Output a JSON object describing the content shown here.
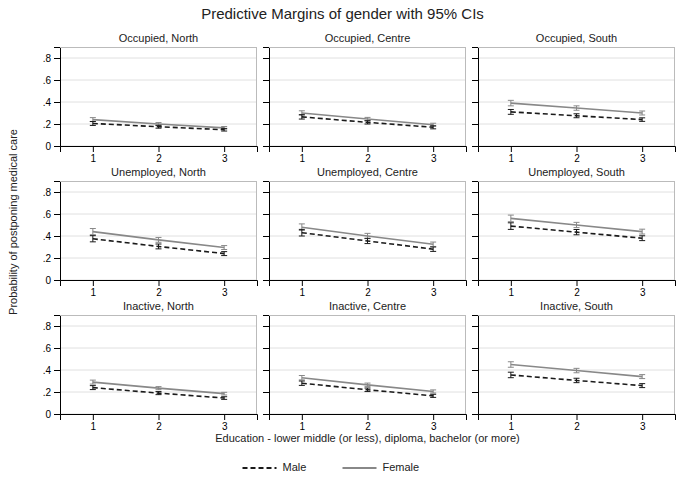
{
  "title": "Predictive Margins of gender with 95% CIs",
  "ylabel": "Probability of postponing medical care",
  "xlabel": "Education - lower middle (or less), diploma, bachelor (or more)",
  "legend": "bottom",
  "chart_data": [
    {
      "type": "line",
      "title": "Occupied, North",
      "x": [
        1,
        2,
        3
      ],
      "xlim": [
        0.5,
        3.5
      ],
      "xticks": [
        1,
        2,
        3
      ],
      "ylim": [
        0,
        0.9
      ],
      "yticks": [
        0,
        {
          "value": 0.2,
          "label": ".2"
        },
        {
          "value": 0.4,
          "label": ".4"
        },
        {
          "value": 0.6,
          "label": ".6"
        },
        {
          "value": 0.8,
          "label": ".8"
        }
      ],
      "grid": true,
      "series": [
        {
          "name": "Male",
          "color": "#1a1a1a",
          "line_style": "dashed",
          "values": [
            0.205,
            0.175,
            0.148
          ],
          "errors": [
            0.018,
            0.013,
            0.012
          ]
        },
        {
          "name": "Female",
          "color": "#888888",
          "line_style": "solid",
          "values": [
            0.24,
            0.2,
            0.165
          ],
          "errors": [
            0.018,
            0.013,
            0.012
          ]
        }
      ]
    },
    {
      "type": "line",
      "title": "Occupied, Centre",
      "x": [
        1,
        2,
        3
      ],
      "xlim": [
        0.5,
        3.5
      ],
      "xticks": [
        1,
        2,
        3
      ],
      "ylim": [
        0,
        0.9
      ],
      "yticks": [
        0,
        {
          "value": 0.2,
          "label": ".2"
        },
        {
          "value": 0.4,
          "label": ".4"
        },
        {
          "value": 0.6,
          "label": ".6"
        },
        {
          "value": 0.8,
          "label": ".8"
        }
      ],
      "grid": true,
      "tick_labels": "x",
      "series": [
        {
          "name": "Male",
          "color": "#1a1a1a",
          "line_style": "dashed",
          "values": [
            0.265,
            0.215,
            0.17
          ],
          "errors": [
            0.02,
            0.015,
            0.014
          ]
        },
        {
          "name": "Female",
          "color": "#888888",
          "line_style": "solid",
          "values": [
            0.3,
            0.245,
            0.193
          ],
          "errors": [
            0.02,
            0.015,
            0.014
          ]
        }
      ]
    },
    {
      "type": "line",
      "title": "Occupied, South",
      "x": [
        1,
        2,
        3
      ],
      "xlim": [
        0.5,
        3.5
      ],
      "xticks": [
        1,
        2,
        3
      ],
      "ylim": [
        0,
        0.9
      ],
      "yticks": [
        0,
        {
          "value": 0.2,
          "label": ".2"
        },
        {
          "value": 0.4,
          "label": ".4"
        },
        {
          "value": 0.6,
          "label": ".6"
        },
        {
          "value": 0.8,
          "label": ".8"
        }
      ],
      "grid": true,
      "tick_labels": "x",
      "series": [
        {
          "name": "Male",
          "color": "#1a1a1a",
          "line_style": "dashed",
          "values": [
            0.31,
            0.275,
            0.24
          ],
          "errors": [
            0.022,
            0.018,
            0.016
          ]
        },
        {
          "name": "Female",
          "color": "#888888",
          "line_style": "solid",
          "values": [
            0.39,
            0.345,
            0.3
          ],
          "errors": [
            0.025,
            0.02,
            0.018
          ]
        }
      ]
    },
    {
      "type": "line",
      "title": "Unemployed, North",
      "x": [
        1,
        2,
        3
      ],
      "xlim": [
        0.5,
        3.5
      ],
      "xticks": [
        1,
        2,
        3
      ],
      "ylim": [
        0,
        0.9
      ],
      "yticks": [
        0,
        {
          "value": 0.2,
          "label": ".2"
        },
        {
          "value": 0.4,
          "label": ".4"
        },
        {
          "value": 0.6,
          "label": ".6"
        },
        {
          "value": 0.8,
          "label": ".8"
        }
      ],
      "grid": true,
      "series": [
        {
          "name": "Male",
          "color": "#1a1a1a",
          "line_style": "dashed",
          "values": [
            0.375,
            0.305,
            0.24
          ],
          "errors": [
            0.028,
            0.022,
            0.018
          ]
        },
        {
          "name": "Female",
          "color": "#888888",
          "line_style": "solid",
          "values": [
            0.44,
            0.365,
            0.295
          ],
          "errors": [
            0.028,
            0.022,
            0.018
          ]
        }
      ]
    },
    {
      "type": "line",
      "title": "Unemployed, Centre",
      "x": [
        1,
        2,
        3
      ],
      "xlim": [
        0.5,
        3.5
      ],
      "xticks": [
        1,
        2,
        3
      ],
      "ylim": [
        0,
        0.9
      ],
      "yticks": [
        0,
        {
          "value": 0.2,
          "label": ".2"
        },
        {
          "value": 0.4,
          "label": ".4"
        },
        {
          "value": 0.6,
          "label": ".6"
        },
        {
          "value": 0.8,
          "label": ".8"
        }
      ],
      "grid": true,
      "tick_labels": "x",
      "series": [
        {
          "name": "Male",
          "color": "#1a1a1a",
          "line_style": "dashed",
          "values": [
            0.43,
            0.355,
            0.28
          ],
          "errors": [
            0.03,
            0.024,
            0.02
          ]
        },
        {
          "name": "Female",
          "color": "#888888",
          "line_style": "solid",
          "values": [
            0.48,
            0.4,
            0.325
          ],
          "errors": [
            0.03,
            0.024,
            0.02
          ]
        }
      ]
    },
    {
      "type": "line",
      "title": "Unemployed, South",
      "x": [
        1,
        2,
        3
      ],
      "xlim": [
        0.5,
        3.5
      ],
      "xticks": [
        1,
        2,
        3
      ],
      "ylim": [
        0,
        0.9
      ],
      "yticks": [
        0,
        {
          "value": 0.2,
          "label": ".2"
        },
        {
          "value": 0.4,
          "label": ".4"
        },
        {
          "value": 0.6,
          "label": ".6"
        },
        {
          "value": 0.8,
          "label": ".8"
        }
      ],
      "grid": true,
      "tick_labels": "x",
      "series": [
        {
          "name": "Male",
          "color": "#1a1a1a",
          "line_style": "dashed",
          "values": [
            0.49,
            0.435,
            0.38
          ],
          "errors": [
            0.03,
            0.024,
            0.022
          ]
        },
        {
          "name": "Female",
          "color": "#888888",
          "line_style": "solid",
          "values": [
            0.56,
            0.5,
            0.44
          ],
          "errors": [
            0.03,
            0.024,
            0.022
          ]
        }
      ]
    },
    {
      "type": "line",
      "title": "Inactive, North",
      "x": [
        1,
        2,
        3
      ],
      "xlim": [
        0.5,
        3.5
      ],
      "xticks": [
        1,
        2,
        3
      ],
      "ylim": [
        0,
        0.9
      ],
      "yticks": [
        0,
        {
          "value": 0.2,
          "label": ".2"
        },
        {
          "value": 0.4,
          "label": ".4"
        },
        {
          "value": 0.6,
          "label": ".6"
        },
        {
          "value": 0.8,
          "label": ".8"
        }
      ],
      "grid": true,
      "series": [
        {
          "name": "Male",
          "color": "#1a1a1a",
          "line_style": "dashed",
          "values": [
            0.24,
            0.19,
            0.145
          ],
          "errors": [
            0.018,
            0.014,
            0.012
          ]
        },
        {
          "name": "Female",
          "color": "#888888",
          "line_style": "solid",
          "values": [
            0.29,
            0.235,
            0.185
          ],
          "errors": [
            0.018,
            0.014,
            0.012
          ]
        }
      ]
    },
    {
      "type": "line",
      "title": "Inactive, Centre",
      "x": [
        1,
        2,
        3
      ],
      "xlim": [
        0.5,
        3.5
      ],
      "xticks": [
        1,
        2,
        3
      ],
      "ylim": [
        0,
        0.9
      ],
      "yticks": [
        0,
        {
          "value": 0.2,
          "label": ".2"
        },
        {
          "value": 0.4,
          "label": ".4"
        },
        {
          "value": 0.6,
          "label": ".6"
        },
        {
          "value": 0.8,
          "label": ".8"
        }
      ],
      "grid": true,
      "tick_labels": "x",
      "series": [
        {
          "name": "Male",
          "color": "#1a1a1a",
          "line_style": "dashed",
          "values": [
            0.28,
            0.22,
            0.165
          ],
          "errors": [
            0.02,
            0.016,
            0.014
          ]
        },
        {
          "name": "Female",
          "color": "#888888",
          "line_style": "solid",
          "values": [
            0.33,
            0.265,
            0.205
          ],
          "errors": [
            0.02,
            0.016,
            0.014
          ]
        }
      ]
    },
    {
      "type": "line",
      "title": "Inactive, South",
      "x": [
        1,
        2,
        3
      ],
      "xlim": [
        0.5,
        3.5
      ],
      "xticks": [
        1,
        2,
        3
      ],
      "ylim": [
        0,
        0.9
      ],
      "yticks": [
        0,
        {
          "value": 0.2,
          "label": ".2"
        },
        {
          "value": 0.4,
          "label": ".4"
        },
        {
          "value": 0.6,
          "label": ".6"
        },
        {
          "value": 0.8,
          "label": ".8"
        }
      ],
      "grid": true,
      "tick_labels": "x",
      "series": [
        {
          "name": "Male",
          "color": "#1a1a1a",
          "line_style": "dashed",
          "values": [
            0.355,
            0.305,
            0.258
          ],
          "errors": [
            0.025,
            0.02,
            0.018
          ]
        },
        {
          "name": "Female",
          "color": "#888888",
          "line_style": "solid",
          "values": [
            0.45,
            0.395,
            0.34
          ],
          "errors": [
            0.025,
            0.02,
            0.018
          ]
        }
      ]
    }
  ]
}
